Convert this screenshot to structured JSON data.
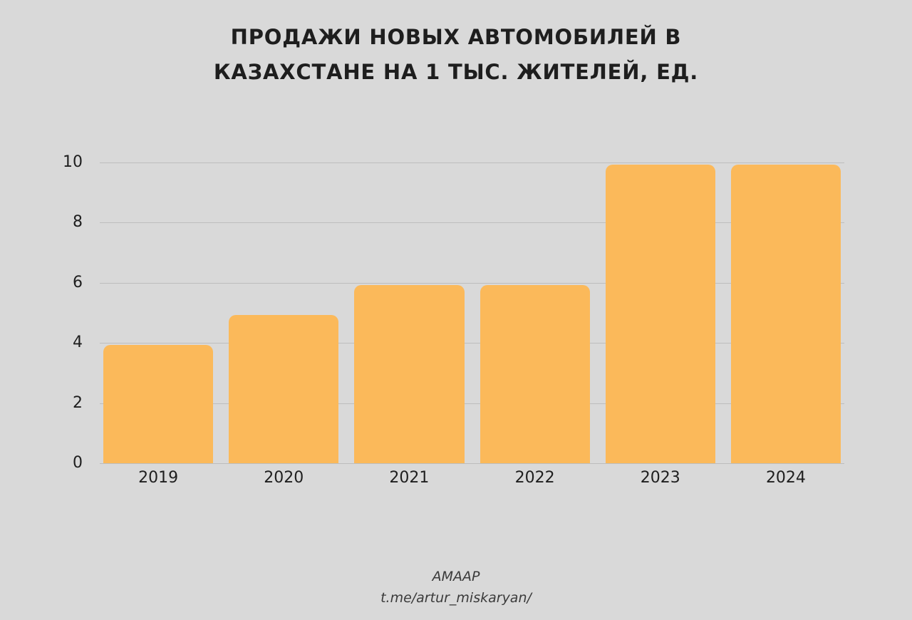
{
  "title": {
    "lines": [
      "ПРОДАЖИ НОВЫХ АВТОМОБИЛЕЙ В",
      "КАЗАХСТАНЕ НА 1 ТЫС. ЖИТЕЛЕЙ, ЕД."
    ]
  },
  "footer": {
    "source": "AMAAP",
    "link": "t.me/artur_miskaryan/"
  },
  "colors": {
    "background": "#D9D9D9",
    "bar": "#FBB95A",
    "gridline": "#BDBDBD",
    "text": "#1E1E1E",
    "footer_text": "#3A3A3A"
  },
  "chart_data": {
    "type": "bar",
    "title": "ПРОДАЖИ НОВЫХ АВТОМОБИЛЕЙ В КАЗАХСТАНЕ НА 1 ТЫС. ЖИТЕЛЕЙ, ЕД.",
    "categories": [
      "2019",
      "2020",
      "2021",
      "2022",
      "2023",
      "2024"
    ],
    "values": [
      4,
      5,
      6,
      6,
      10,
      10
    ],
    "xlabel": "",
    "ylabel": "",
    "ylim": [
      0,
      10
    ],
    "yticks": [
      0,
      2,
      4,
      6,
      8,
      10
    ],
    "grid": true,
    "legend_position": "none",
    "bar_corner_radius": "rounded-top"
  }
}
